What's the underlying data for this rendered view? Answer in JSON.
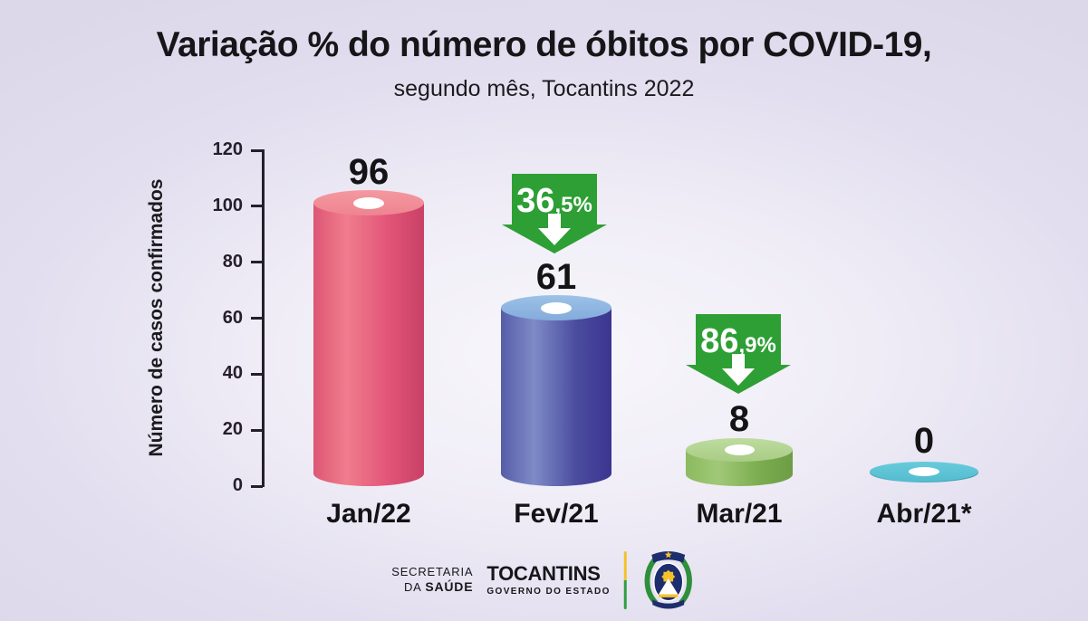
{
  "title": {
    "main": "Variação % do número de óbitos por COVID-19,",
    "sub": "segundo mês, Tocantins 2022"
  },
  "chart_data": {
    "type": "bar",
    "bar_style": "3d-cylinder",
    "title": "Variação % do número de óbitos por COVID-19,",
    "subtitle": "segundo mês, Tocantins 2022",
    "categories": [
      "Jan/22",
      "Fev/21",
      "Mar/21",
      "Abr/21*"
    ],
    "values": [
      96,
      61,
      8,
      0
    ],
    "value_labels": [
      "96",
      "61",
      "8",
      "0"
    ],
    "xlabel": "",
    "ylabel": "Número de casos confirmados",
    "yticks": [
      120,
      100,
      80,
      60,
      40,
      20,
      0
    ],
    "ylim": [
      0,
      120
    ],
    "grid": false,
    "legend": false,
    "bar_colors": [
      {
        "name": "pink",
        "top": [
          "#f4989f",
          "#ee8490"
        ],
        "body": [
          "#dd5674",
          "#f07d8d",
          "#e25478",
          "#c84166"
        ],
        "hole": "#ffffff"
      },
      {
        "name": "indigo",
        "top": [
          "#9cc2e8",
          "#84abdb"
        ],
        "body": [
          "#565da8",
          "#7e8bc7",
          "#4a4c9e",
          "#3b3590"
        ],
        "hole": "#ffffff"
      },
      {
        "name": "green",
        "top": [
          "#bedc9f",
          "#a8cc85"
        ],
        "body": [
          "#8cba5f",
          "#a0c977",
          "#7cad50",
          "#6d9c45"
        ],
        "hole": "#ffffff"
      },
      {
        "name": "cyan",
        "top": [
          "#68cbdc",
          "#54bccf"
        ],
        "body": [
          "#45a3b4",
          "#58c0d2",
          "#45a3b4",
          "#3d95a6"
        ],
        "hole": "#ffffff"
      }
    ],
    "annotations": [
      {
        "type": "decrease-arrow",
        "between": [
          "Jan/22",
          "Fev/21"
        ],
        "text": "36,5%",
        "main": "36",
        "suffix": ",5%",
        "color": "#2e9f35"
      },
      {
        "type": "decrease-arrow",
        "between": [
          "Fev/21",
          "Mar/21"
        ],
        "text": "86,9%",
        "main": "86",
        "suffix": ",9%",
        "color": "#2e9f35"
      }
    ]
  },
  "footer": {
    "secretaria_line1": "SECRETARIA",
    "secretaria_line2_prefix": "DA ",
    "secretaria_line2_bold": "SAÚDE",
    "gov_name": "TOCANTINS",
    "gov_sub": "GOVERNO DO ESTADO",
    "emblem_icon": "tocantins-coat-of-arms",
    "divider_colors": [
      "#f6c02a",
      "#2f9e41"
    ]
  },
  "colors": {
    "background": "#dfdbec",
    "text": "#17171a",
    "axis": "#241f2b",
    "badge_green": "#2e9f35"
  }
}
